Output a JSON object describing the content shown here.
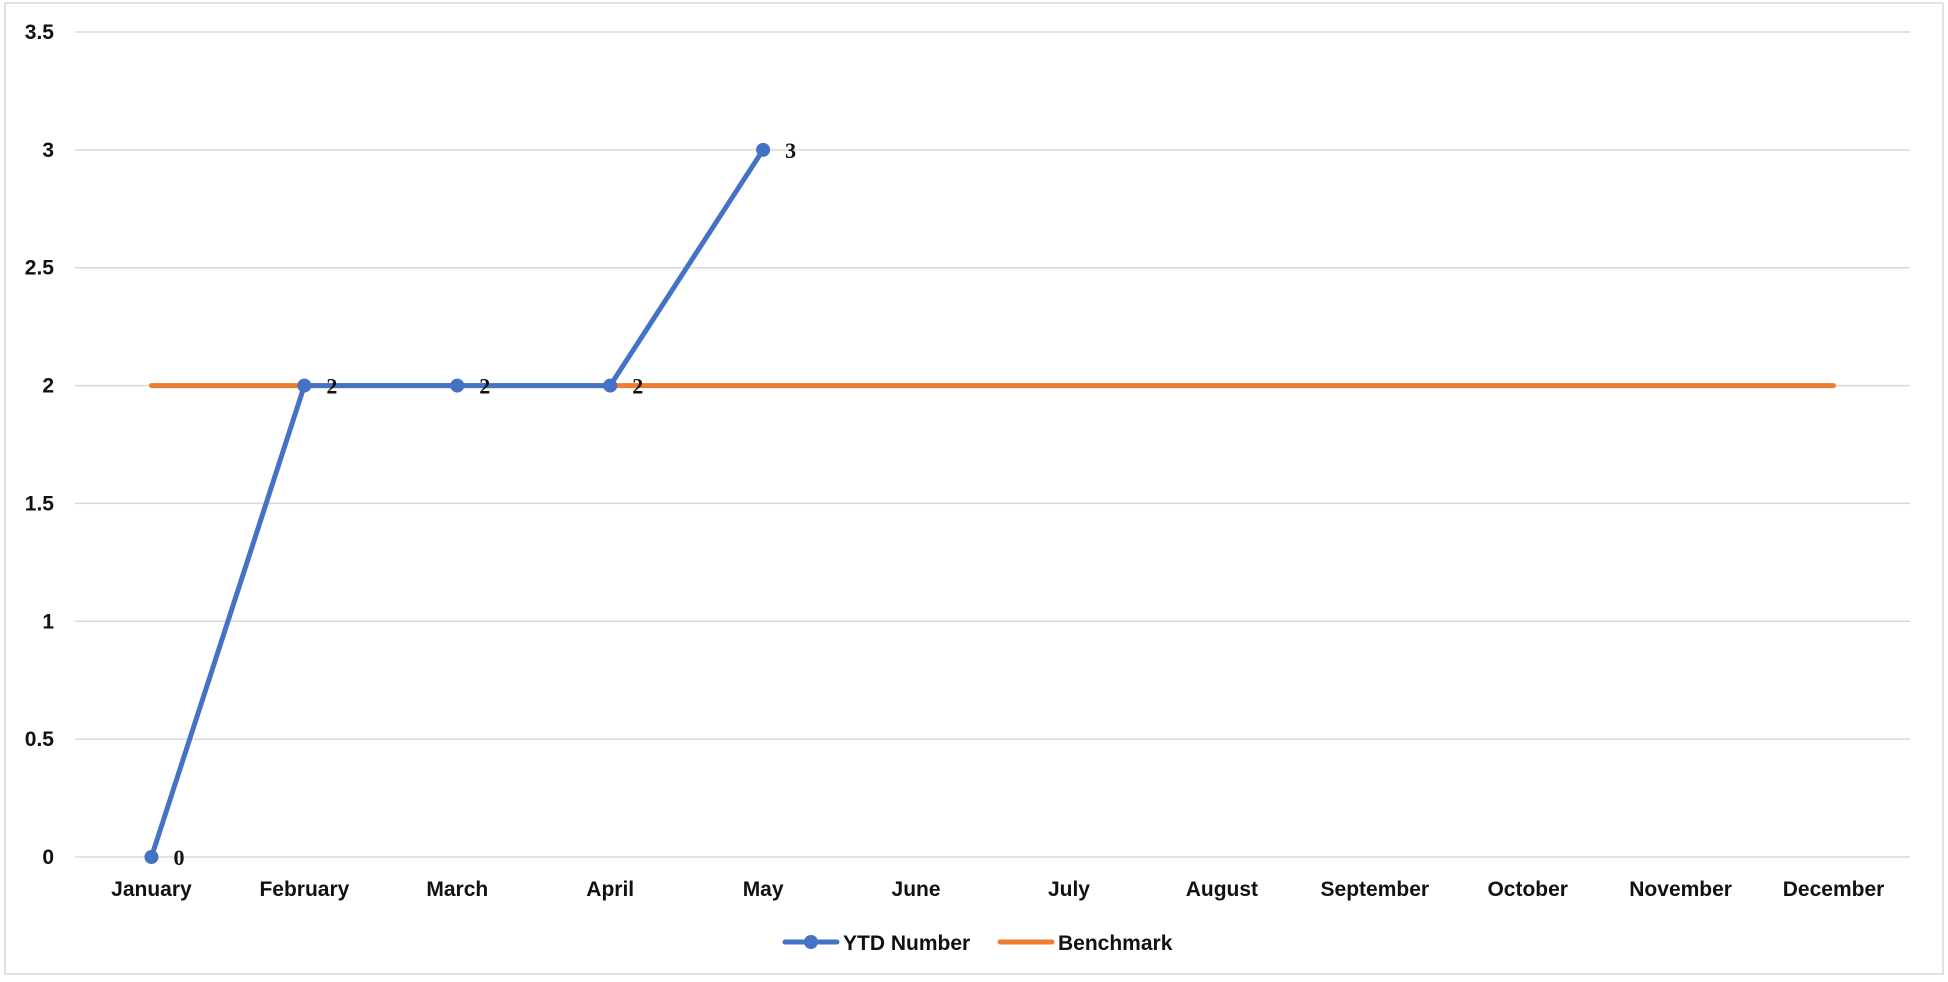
{
  "chart_data": {
    "type": "line",
    "title": "",
    "xlabel": "",
    "ylabel": "",
    "categories": [
      "January",
      "February",
      "March",
      "April",
      "May",
      "June",
      "July",
      "August",
      "September",
      "October",
      "November",
      "December"
    ],
    "ylim": [
      0,
      3.5
    ],
    "y_ticks": [
      0,
      0.5,
      1,
      1.5,
      2,
      2.5,
      3,
      3.5
    ],
    "grid": true,
    "legend_position": "bottom",
    "series": [
      {
        "name": "YTD Number",
        "values": [
          0,
          2,
          2,
          2,
          3,
          null,
          null,
          null,
          null,
          null,
          null,
          null
        ],
        "color": "#4472C4",
        "markers": true,
        "data_labels": true
      },
      {
        "name": "Benchmark",
        "values": [
          2,
          2,
          2,
          2,
          2,
          2,
          2,
          2,
          2,
          2,
          2,
          2
        ],
        "color": "#ED7D31",
        "markers": false,
        "data_labels": false
      }
    ]
  }
}
